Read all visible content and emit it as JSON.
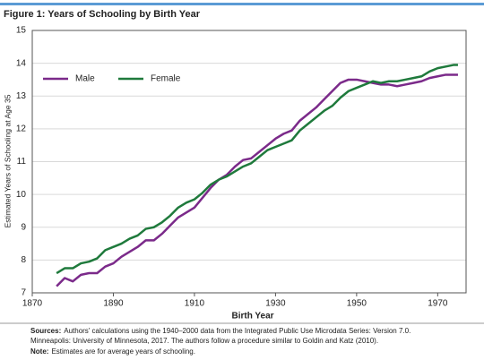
{
  "chart_data": {
    "type": "line",
    "title": "Figure 1: Years of Schooling by Birth Year",
    "x_label": "Birth Year",
    "y_label": "Estimated Years of Schooling at Age 35",
    "x": [
      1876,
      1878,
      1880,
      1882,
      1884,
      1886,
      1888,
      1890,
      1892,
      1894,
      1896,
      1898,
      1900,
      1902,
      1904,
      1906,
      1908,
      1910,
      1912,
      1914,
      1916,
      1918,
      1920,
      1922,
      1924,
      1926,
      1928,
      1930,
      1932,
      1934,
      1936,
      1938,
      1940,
      1942,
      1944,
      1946,
      1948,
      1950,
      1952,
      1954,
      1956,
      1958,
      1960,
      1962,
      1964,
      1966,
      1968,
      1970,
      1972,
      1974,
      1975
    ],
    "series": [
      {
        "name": "Male",
        "color": "#7b2a8a",
        "values": [
          7.2,
          7.45,
          7.35,
          7.55,
          7.6,
          7.6,
          7.8,
          7.9,
          8.1,
          8.25,
          8.4,
          8.6,
          8.6,
          8.8,
          9.05,
          9.3,
          9.45,
          9.6,
          9.9,
          10.2,
          10.45,
          10.6,
          10.85,
          11.05,
          11.1,
          11.3,
          11.5,
          11.7,
          11.85,
          11.95,
          12.25,
          12.45,
          12.65,
          12.9,
          13.15,
          13.4,
          13.5,
          13.5,
          13.45,
          13.4,
          13.35,
          13.35,
          13.3,
          13.35,
          13.4,
          13.45,
          13.55,
          13.6,
          13.65,
          13.65,
          13.65
        ]
      },
      {
        "name": "Female",
        "color": "#1f7a3c",
        "values": [
          7.6,
          7.75,
          7.75,
          7.9,
          7.95,
          8.05,
          8.3,
          8.4,
          8.5,
          8.65,
          8.75,
          8.95,
          9.0,
          9.15,
          9.35,
          9.6,
          9.75,
          9.85,
          10.05,
          10.3,
          10.45,
          10.55,
          10.7,
          10.85,
          10.95,
          11.15,
          11.35,
          11.45,
          11.55,
          11.65,
          11.95,
          12.15,
          12.35,
          12.55,
          12.7,
          12.95,
          13.15,
          13.25,
          13.35,
          13.45,
          13.4,
          13.45,
          13.45,
          13.5,
          13.55,
          13.6,
          13.75,
          13.85,
          13.9,
          13.95,
          13.95
        ]
      }
    ],
    "xlim": [
      1870,
      1977
    ],
    "xticks": [
      1870,
      1890,
      1910,
      1930,
      1950,
      1970
    ],
    "ylim": [
      7,
      15
    ],
    "yticks": [
      7,
      8,
      9,
      10,
      11,
      12,
      13,
      14,
      15
    ],
    "grid": true,
    "legend": "upper-left",
    "sources_label": "Sources:",
    "sources_lines": [
      "Authors' calculations using the 1940–2000 data from the Integrated Public Use Microdata Series: Version 7.0.",
      "Minneapolis: University of Minnesota, 2017. The authors follow a procedure similar to Goldin and Katz (2010)."
    ],
    "note_label": "Note:",
    "note_text": "Estimates are for average years of schooling."
  }
}
